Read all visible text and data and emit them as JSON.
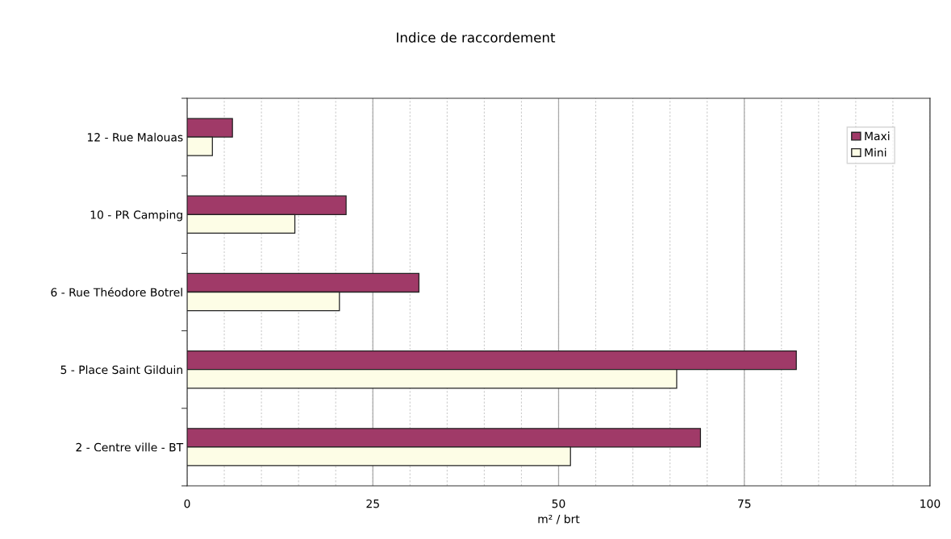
{
  "chart_data": {
    "type": "bar",
    "orientation": "horizontal",
    "title": "Indice de raccordement",
    "xlabel": "m² / brt",
    "categories": [
      "12 - Rue Malouas",
      "10 - PR Camping",
      "6 - Rue Théodore Botrel",
      "5 - Place Saint Gilduin",
      "2 - Centre ville - BT"
    ],
    "series": [
      {
        "name": "Maxi",
        "color": "#a03a68",
        "values": [
          6.1,
          21.4,
          31.2,
          82.0,
          69.1
        ]
      },
      {
        "name": "Mini",
        "color": "#fdfde6",
        "values": [
          3.4,
          14.5,
          20.5,
          65.9,
          51.6
        ]
      }
    ],
    "xlim": [
      0,
      100
    ],
    "xticks": [
      0,
      {
        "value": 5,
        "label": null
      },
      {
        "value": 10,
        "label": null
      },
      {
        "value": 15,
        "label": null
      },
      {
        "value": 20,
        "label": null
      },
      25,
      {
        "value": 30,
        "label": null
      },
      {
        "value": 35,
        "label": null
      },
      {
        "value": 40,
        "label": null
      },
      {
        "value": 45,
        "label": null
      },
      50,
      {
        "value": 55,
        "label": null
      },
      {
        "value": 60,
        "label": null
      },
      {
        "value": 65,
        "label": null
      },
      {
        "value": 70,
        "label": null
      },
      75,
      {
        "value": 80,
        "label": null
      },
      {
        "value": 85,
        "label": null
      },
      {
        "value": 90,
        "label": null
      },
      {
        "value": 95,
        "label": null
      },
      100
    ],
    "grid": "x",
    "legend": "top right"
  }
}
